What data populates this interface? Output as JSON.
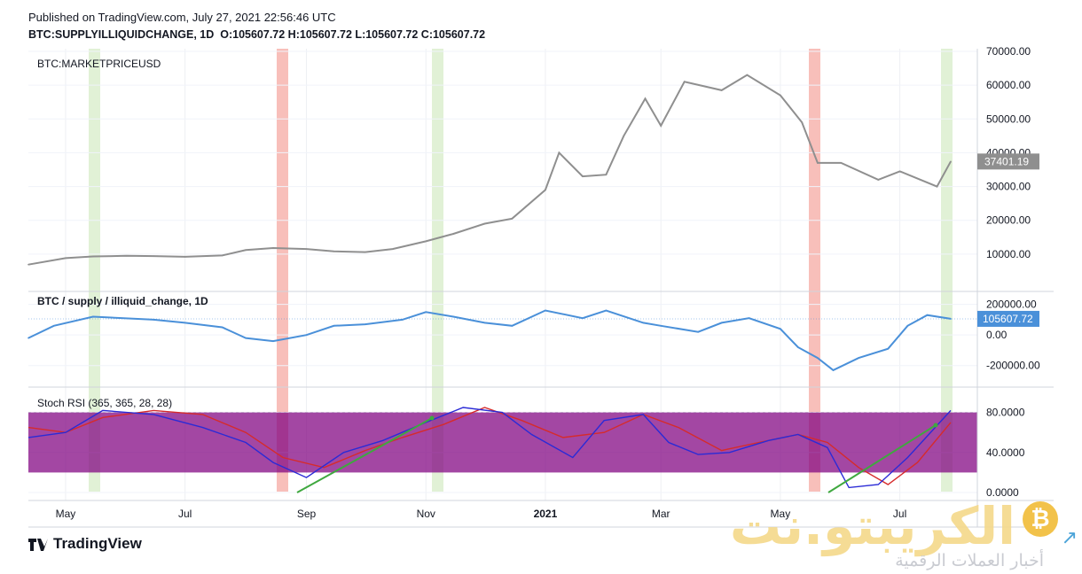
{
  "header": {
    "published": "Published on TradingView.com, July 27, 2021 22:56:46 UTC",
    "symbol": "BTC:SUPPLYILLIQUIDCHANGE, 1D",
    "ohlc": "O:105607.72 H:105607.72 L:105607.72 C:105607.72"
  },
  "footer": {
    "brand": "TradingView"
  },
  "watermark": {
    "title": "الكريبتو.نت",
    "subtitle": "أخبار العملات الرقمية",
    "coin_symbol": "₿"
  },
  "colors": {
    "price": "#8f8f8f",
    "supply": "#4a90d9",
    "stoch_k": "#2b2bd6",
    "stoch_d": "#d62b2b",
    "trend": "#3fa83f",
    "stoch_band": "#800080",
    "red_zone": "#f28b82",
    "green_zone": "#c8e6b4"
  },
  "chart_data": [
    {
      "type": "line",
      "title": "BTC:MARKETPRICEUSD",
      "last_value_label": "37401.19",
      "ylim": [
        0,
        70000
      ],
      "y_ticks": [
        "70000.00",
        "60000.00",
        "50000.00",
        "40000.00",
        "30000.00",
        "20000.00",
        "10000.00"
      ],
      "y_tick_values": [
        70000,
        60000,
        50000,
        40000,
        30000,
        20000,
        10000
      ],
      "x_ticks": [
        "May",
        "Jul",
        "Sep",
        "Nov",
        "2021",
        "Mar",
        "May",
        "Jul"
      ],
      "series": [
        {
          "x": [
            "2020-04-12",
            "2020-05-01",
            "2020-05-15",
            "2020-06-01",
            "2020-06-15",
            "2020-07-01",
            "2020-07-20",
            "2020-08-01",
            "2020-08-15",
            "2020-09-01",
            "2020-09-15",
            "2020-10-01",
            "2020-10-15",
            "2020-11-01",
            "2020-11-15",
            "2020-12-01",
            "2020-12-15",
            "2021-01-01",
            "2021-01-08",
            "2021-01-20",
            "2021-02-01",
            "2021-02-10",
            "2021-02-21",
            "2021-03-01",
            "2021-03-13",
            "2021-04-01",
            "2021-04-14",
            "2021-05-01",
            "2021-05-12",
            "2021-05-20",
            "2021-06-01",
            "2021-06-20",
            "2021-07-01",
            "2021-07-20",
            "2021-07-27"
          ],
          "values": [
            6900,
            8800,
            9300,
            9500,
            9400,
            9200,
            9600,
            11200,
            11800,
            11500,
            10800,
            10600,
            11500,
            13800,
            16000,
            19000,
            20500,
            29000,
            40000,
            33000,
            33500,
            45000,
            56000,
            48000,
            61000,
            58500,
            63000,
            57000,
            49000,
            37000,
            37000,
            32000,
            34500,
            30000,
            37401.19
          ]
        }
      ]
    },
    {
      "type": "line",
      "title": "BTC / supply / illiquid_change, 1D",
      "last_value_label": "105607.72",
      "ylim": [
        -300000,
        250000
      ],
      "y_ticks": [
        "200000.00",
        "0.00",
        "-200000.00"
      ],
      "y_tick_values": [
        200000,
        0,
        -200000
      ],
      "series": [
        {
          "x": [
            "2020-04-12",
            "2020-04-25",
            "2020-05-15",
            "2020-06-15",
            "2020-07-01",
            "2020-07-20",
            "2020-08-01",
            "2020-08-15",
            "2020-09-01",
            "2020-09-15",
            "2020-10-01",
            "2020-10-20",
            "2020-11-01",
            "2020-11-15",
            "2020-12-01",
            "2020-12-15",
            "2021-01-01",
            "2021-01-20",
            "2021-02-01",
            "2021-02-20",
            "2021-03-01",
            "2021-03-20",
            "2021-04-01",
            "2021-04-15",
            "2021-05-01",
            "2021-05-10",
            "2021-05-20",
            "2021-05-28",
            "2021-06-10",
            "2021-06-25",
            "2021-07-05",
            "2021-07-15",
            "2021-07-27"
          ],
          "values": [
            -20000,
            60000,
            120000,
            100000,
            80000,
            50000,
            -20000,
            -40000,
            0,
            60000,
            70000,
            100000,
            150000,
            120000,
            80000,
            60000,
            160000,
            110000,
            160000,
            80000,
            60000,
            20000,
            80000,
            110000,
            40000,
            -80000,
            -150000,
            -230000,
            -150000,
            -90000,
            60000,
            130000,
            105607.72
          ]
        }
      ]
    },
    {
      "type": "line",
      "title": "Stoch RSI (365, 365, 28, 28)",
      "ylim": [
        0,
        85
      ],
      "y_ticks": [
        "80.0000",
        "40.0000",
        "0.0000"
      ],
      "y_tick_values": [
        80,
        40,
        0
      ],
      "band": [
        20,
        80
      ],
      "series": [
        {
          "x": [
            "2020-04-12",
            "2020-05-01",
            "2020-05-20",
            "2020-06-15",
            "2020-07-10",
            "2020-08-01",
            "2020-08-15",
            "2020-09-01",
            "2020-09-20",
            "2020-10-10",
            "2020-11-01",
            "2020-11-20",
            "2020-12-10",
            "2020-12-25",
            "2021-01-15",
            "2021-01-31",
            "2021-02-20",
            "2021-03-05",
            "2021-03-20",
            "2021-04-05",
            "2021-04-25",
            "2021-05-10",
            "2021-05-25",
            "2021-06-05",
            "2021-06-20",
            "2021-07-05",
            "2021-07-27"
          ],
          "values": [
            55,
            60,
            82,
            78,
            65,
            50,
            30,
            15,
            40,
            52,
            70,
            85,
            80,
            58,
            35,
            72,
            78,
            50,
            38,
            40,
            52,
            58,
            45,
            5,
            8,
            35,
            82
          ]
        },
        {
          "x": [
            "2020-04-12",
            "2020-05-01",
            "2020-05-20",
            "2020-06-15",
            "2020-07-10",
            "2020-08-01",
            "2020-08-20",
            "2020-09-10",
            "2020-10-01",
            "2020-10-20",
            "2020-11-10",
            "2020-12-01",
            "2020-12-20",
            "2021-01-10",
            "2021-01-31",
            "2021-02-20",
            "2021-03-10",
            "2021-04-01",
            "2021-04-20",
            "2021-05-10",
            "2021-05-25",
            "2021-06-10",
            "2021-06-25",
            "2021-07-10",
            "2021-07-27"
          ],
          "values": [
            65,
            60,
            75,
            82,
            78,
            60,
            35,
            25,
            42,
            55,
            68,
            85,
            72,
            55,
            60,
            78,
            65,
            42,
            50,
            58,
            50,
            25,
            8,
            30,
            70
          ]
        }
      ]
    }
  ]
}
